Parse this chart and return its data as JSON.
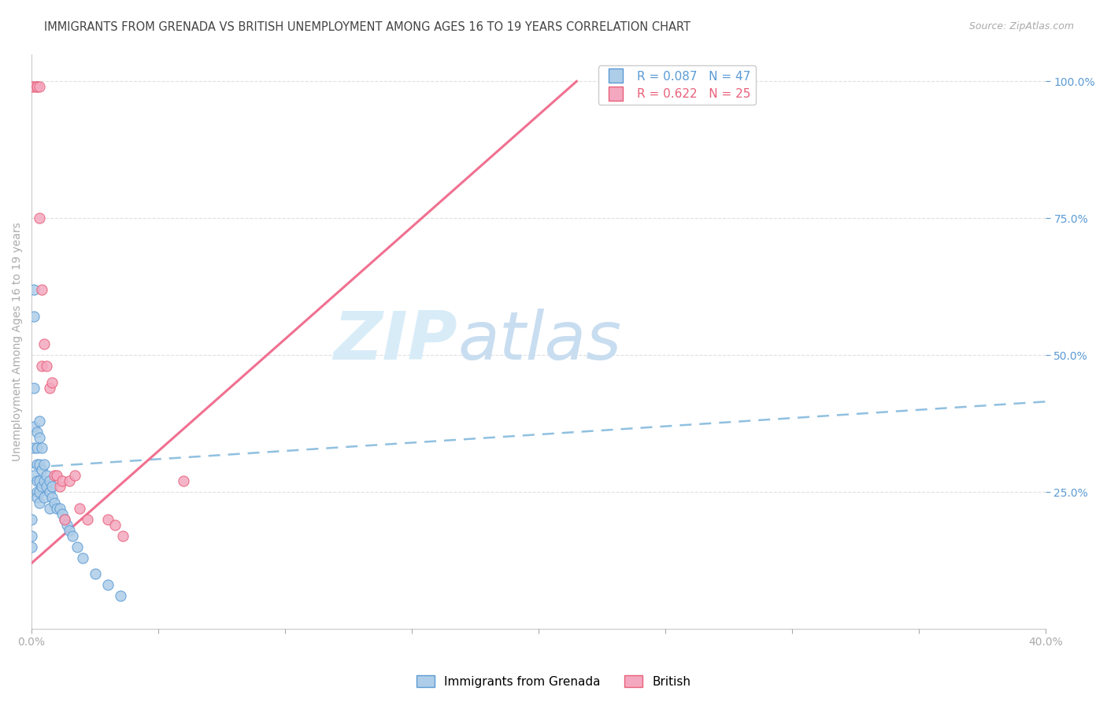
{
  "title": "IMMIGRANTS FROM GRENADA VS BRITISH UNEMPLOYMENT AMONG AGES 16 TO 19 YEARS CORRELATION CHART",
  "source": "Source: ZipAtlas.com",
  "ylabel": "Unemployment Among Ages 16 to 19 years",
  "x_min": 0.0,
  "x_max": 0.4,
  "y_min": 0.0,
  "y_max": 1.05,
  "y_ticks_right": [
    0.25,
    0.5,
    0.75,
    1.0
  ],
  "y_tick_labels_right": [
    "25.0%",
    "50.0%",
    "75.0%",
    "100.0%"
  ],
  "legend_label_blue": "R = 0.087   N = 47",
  "legend_label_pink": "R = 0.622   N = 25",
  "legend_label_scatter_blue": "Immigrants from Grenada",
  "legend_label_scatter_pink": "British",
  "color_blue": "#aecde8",
  "color_pink": "#f4a8bf",
  "color_blue_dark": "#5b9bd5",
  "color_pink_dark": "#e8607a",
  "color_blue_line": "#90c0e0",
  "color_pink_line": "#f07090",
  "watermark_zip": "ZIP",
  "watermark_atlas": "atlas",
  "watermark_color": "#d8ecf8",
  "blue_scatter_x": [
    0.0,
    0.0,
    0.0,
    0.001,
    0.001,
    0.001,
    0.001,
    0.001,
    0.001,
    0.002,
    0.002,
    0.002,
    0.002,
    0.002,
    0.002,
    0.003,
    0.003,
    0.003,
    0.003,
    0.003,
    0.003,
    0.004,
    0.004,
    0.004,
    0.005,
    0.005,
    0.005,
    0.006,
    0.006,
    0.007,
    0.007,
    0.007,
    0.008,
    0.008,
    0.009,
    0.01,
    0.011,
    0.012,
    0.013,
    0.014,
    0.015,
    0.016,
    0.018,
    0.02,
    0.025,
    0.03,
    0.035
  ],
  "blue_scatter_y": [
    0.2,
    0.17,
    0.15,
    0.62,
    0.57,
    0.44,
    0.37,
    0.33,
    0.28,
    0.36,
    0.33,
    0.3,
    0.27,
    0.25,
    0.24,
    0.38,
    0.35,
    0.3,
    0.27,
    0.25,
    0.23,
    0.33,
    0.29,
    0.26,
    0.3,
    0.27,
    0.24,
    0.28,
    0.26,
    0.27,
    0.25,
    0.22,
    0.26,
    0.24,
    0.23,
    0.22,
    0.22,
    0.21,
    0.2,
    0.19,
    0.18,
    0.17,
    0.15,
    0.13,
    0.1,
    0.08,
    0.06
  ],
  "pink_scatter_x": [
    0.0,
    0.001,
    0.002,
    0.002,
    0.003,
    0.003,
    0.004,
    0.004,
    0.005,
    0.006,
    0.007,
    0.008,
    0.009,
    0.01,
    0.011,
    0.012,
    0.013,
    0.015,
    0.017,
    0.019,
    0.022,
    0.03,
    0.033,
    0.036,
    0.06
  ],
  "pink_scatter_y": [
    0.99,
    0.99,
    0.99,
    0.99,
    0.99,
    0.75,
    0.62,
    0.48,
    0.52,
    0.48,
    0.44,
    0.45,
    0.28,
    0.28,
    0.26,
    0.27,
    0.2,
    0.27,
    0.28,
    0.22,
    0.2,
    0.2,
    0.19,
    0.17,
    0.27
  ],
  "blue_line_x": [
    0.0,
    0.4
  ],
  "blue_line_y": [
    0.295,
    0.415
  ],
  "pink_line_x": [
    0.0,
    0.215
  ],
  "pink_line_y": [
    0.12,
    1.0
  ],
  "background_color": "#ffffff",
  "grid_color": "#e0e0e0",
  "title_color": "#444444",
  "axis_color": "#aaaaaa",
  "right_axis_color": "#5b9bd5",
  "title_fontsize": 10.5,
  "source_fontsize": 9,
  "legend_fontsize": 11,
  "axis_label_fontsize": 10,
  "tick_fontsize": 10
}
